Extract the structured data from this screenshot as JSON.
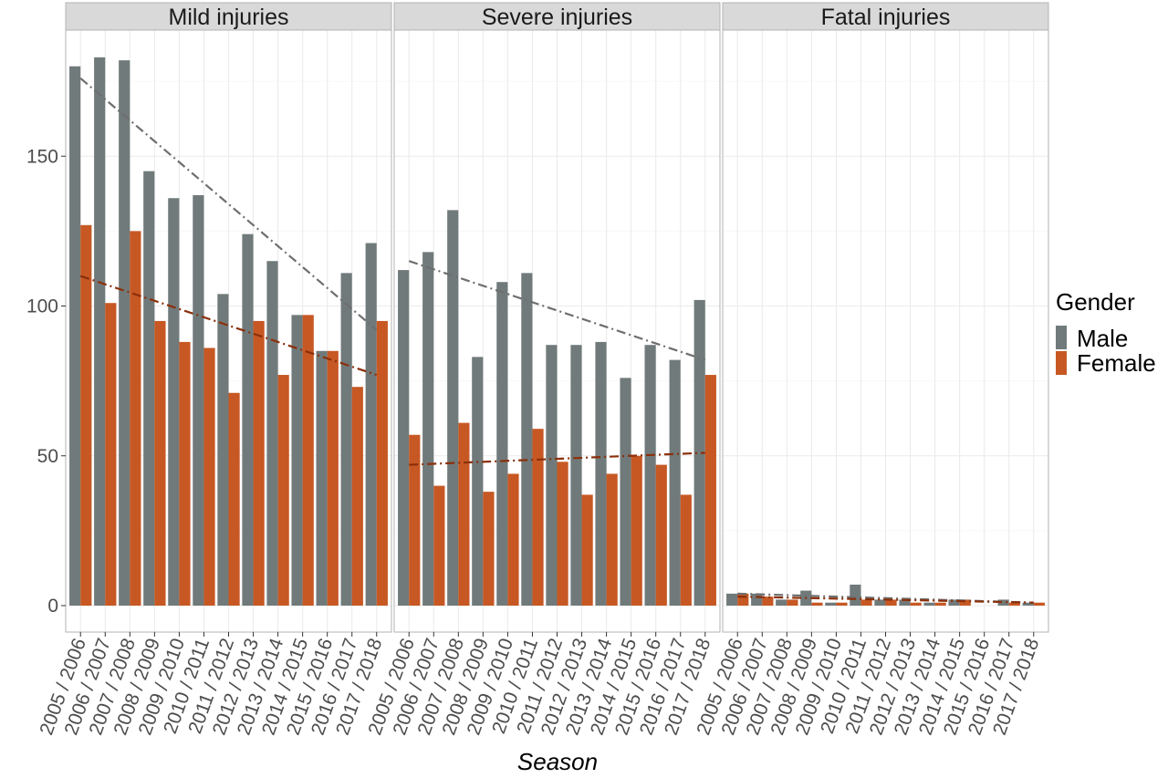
{
  "chart_data": {
    "type": "bar",
    "xlabel": "Season",
    "ylabel": "",
    "ylim": [
      -9,
      190
    ],
    "yticks": [
      0,
      50,
      100,
      150
    ],
    "grid": true,
    "legend": {
      "title": "Gender",
      "placement": "right",
      "entries": [
        "Male",
        "Female"
      ]
    },
    "colors": {
      "Male": "#717a7a",
      "Female": "#c75823"
    },
    "trend_colors": {
      "Male": "#6e6e6e",
      "Female": "#8b2f0a"
    },
    "categories": [
      "2005 / 2006",
      "2006 / 2007",
      "2007 / 2008",
      "2008 / 2009",
      "2009 / 2010",
      "2010 / 2011",
      "2011 / 2012",
      "2012 / 2013",
      "2013 / 2014",
      "2014 / 2015",
      "2015 / 2016",
      "2016 / 2017",
      "2017 / 2018"
    ],
    "panels": [
      {
        "title": "Mild injuries",
        "series": [
          {
            "name": "Male",
            "values": [
              180,
              183,
              182,
              145,
              136,
              137,
              104,
              124,
              115,
              97,
              85,
              111,
              121
            ]
          },
          {
            "name": "Female",
            "values": [
              127,
              101,
              125,
              95,
              88,
              86,
              71,
              95,
              77,
              97,
              85,
              73,
              95
            ]
          }
        ],
        "trend": [
          {
            "series": "Male",
            "start": 176,
            "end": 92
          },
          {
            "series": "Female",
            "start": 110,
            "end": 77
          }
        ]
      },
      {
        "title": "Severe injuries",
        "series": [
          {
            "name": "Male",
            "values": [
              112,
              118,
              132,
              83,
              108,
              111,
              87,
              87,
              88,
              76,
              87,
              82,
              102
            ]
          },
          {
            "name": "Female",
            "values": [
              57,
              40,
              61,
              38,
              44,
              59,
              48,
              37,
              44,
              50,
              47,
              37,
              77
            ]
          }
        ],
        "trend": [
          {
            "series": "Male",
            "start": 115,
            "end": 82
          },
          {
            "series": "Female",
            "start": 47,
            "end": 51
          }
        ]
      },
      {
        "title": "Fatal injuries",
        "series": [
          {
            "name": "Male",
            "values": [
              4,
              4,
              2,
              5,
              1,
              7,
              2,
              2,
              1,
              2,
              0,
              2,
              1
            ]
          },
          {
            "name": "Female",
            "values": [
              4,
              3,
              2,
              1,
              1,
              2,
              2,
              1,
              1,
              2,
              0,
              1,
              1
            ]
          }
        ],
        "trend": [
          {
            "series": "Male",
            "start": 4,
            "end": 1
          },
          {
            "series": "Female",
            "start": 3,
            "end": 1
          }
        ]
      }
    ]
  }
}
